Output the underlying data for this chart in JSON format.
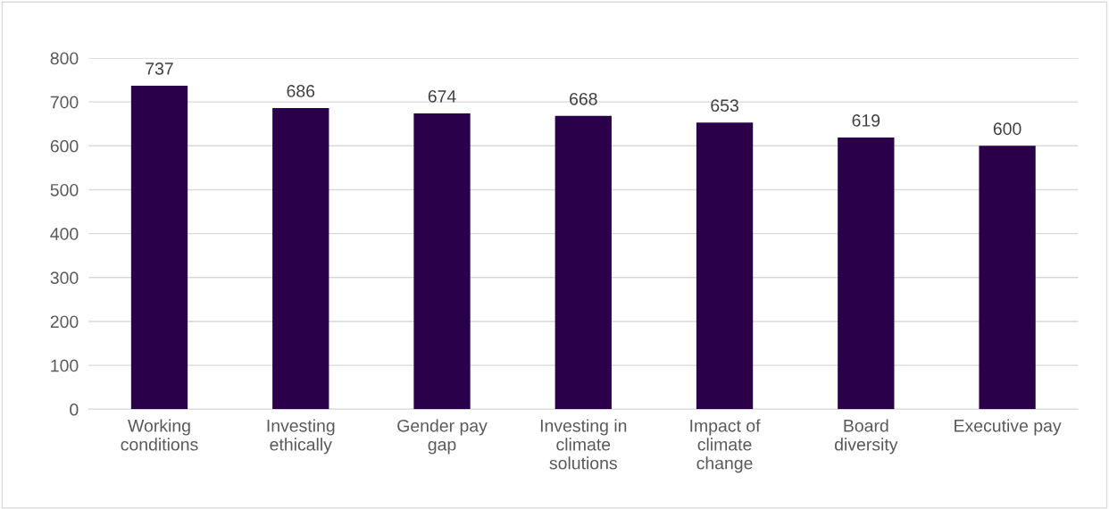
{
  "chart_data": {
    "type": "bar",
    "categories": [
      "Working conditions",
      "Investing ethically",
      "Gender pay gap",
      "Investing in climate solutions",
      "Impact of climate change",
      "Board diversity",
      "Executive pay"
    ],
    "values": [
      737,
      686,
      674,
      668,
      653,
      619,
      600
    ],
    "color": "#2a004a",
    "ylim": [
      0,
      800
    ],
    "yticks": [
      0,
      100,
      200,
      300,
      400,
      500,
      600,
      700,
      800
    ],
    "grid": "y",
    "data_labels": true,
    "legend": false
  }
}
